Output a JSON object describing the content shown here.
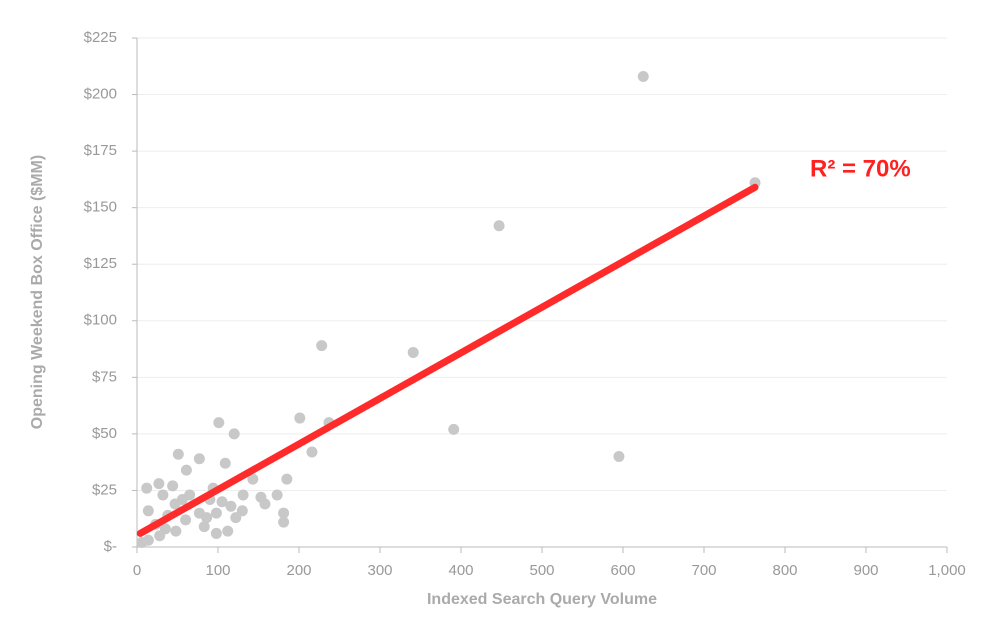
{
  "chart_data": {
    "type": "scatter",
    "xlabel": "Indexed Search Query Volume",
    "ylabel": "Opening Weekend Box Office ($MM)",
    "annotation": "R² = 70%",
    "annotation_color": "#ff2020",
    "color": "#c8c8c8",
    "x": [
      625,
      763,
      447,
      228,
      341,
      391,
      595,
      201,
      237,
      101,
      120,
      216,
      51,
      77,
      109,
      61,
      185,
      143,
      173,
      181,
      181,
      153,
      158,
      131,
      116,
      112,
      98,
      12,
      27,
      44,
      32,
      14,
      65,
      56,
      94,
      90,
      77,
      86,
      98,
      83,
      60,
      48,
      28,
      14,
      6,
      38,
      47,
      23,
      35,
      105,
      130,
      122
    ],
    "values": [
      208,
      161,
      142,
      89,
      86,
      52,
      40,
      57,
      55,
      55,
      50,
      42,
      41,
      39,
      37,
      34,
      30,
      30,
      23,
      15,
      11,
      22,
      19,
      23,
      18,
      7,
      6,
      26,
      28,
      27,
      23,
      16,
      23,
      21,
      26,
      21,
      15,
      13,
      15,
      9,
      12,
      7,
      5,
      3,
      2,
      14,
      19,
      10,
      8,
      20,
      16,
      13
    ],
    "trendline": {
      "x": [
        4,
        763
      ],
      "values": [
        6,
        159
      ],
      "color": "#ff2a2a"
    },
    "xlim": [
      0,
      1000
    ],
    "xticks": [
      0,
      100,
      200,
      300,
      400,
      500,
      600,
      700,
      800,
      900,
      {
        "value": 1000,
        "label": "1,000"
      }
    ],
    "ylim": [
      0,
      225
    ],
    "yticks": [
      {
        "value": 0,
        "label": "$-"
      },
      {
        "value": 25,
        "label": "$25"
      },
      {
        "value": 50,
        "label": "$50"
      },
      {
        "value": 75,
        "label": "$75"
      },
      {
        "value": 100,
        "label": "$100"
      },
      {
        "value": 125,
        "label": "$125"
      },
      {
        "value": 150,
        "label": "$150"
      },
      {
        "value": 175,
        "label": "$175"
      },
      {
        "value": 200,
        "label": "$200"
      },
      {
        "value": 225,
        "label": "$225"
      }
    ],
    "grid": true
  }
}
